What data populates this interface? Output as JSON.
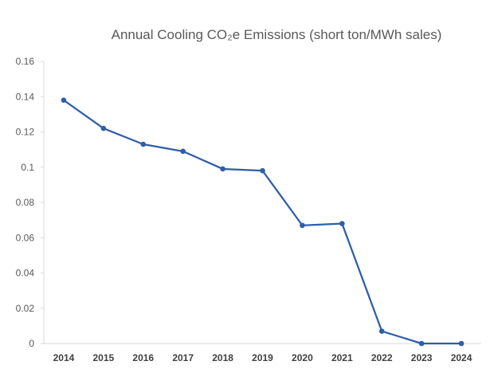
{
  "chart_data": {
    "type": "line",
    "title": "Annual Cooling CO₂e  Emissions (short ton/MWh sales)",
    "xlabel": "",
    "ylabel": "",
    "categories": [
      "2014",
      "2015",
      "2016",
      "2017",
      "2018",
      "2019",
      "2020",
      "2021",
      "2022",
      "2023",
      "2024"
    ],
    "series": [
      {
        "values": [
          0.138,
          0.122,
          0.113,
          0.109,
          0.099,
          0.098,
          0.067,
          0.068,
          0.007,
          0.0,
          0.0
        ],
        "color": "#2E5EA8"
      }
    ],
    "ylim": [
      0,
      0.16
    ],
    "yticks": [
      "0",
      "0.02",
      "0.04",
      "0.06",
      "0.08",
      "0.1",
      "0.12",
      "0.14",
      "0.16"
    ],
    "grid": false,
    "legend": "none"
  }
}
